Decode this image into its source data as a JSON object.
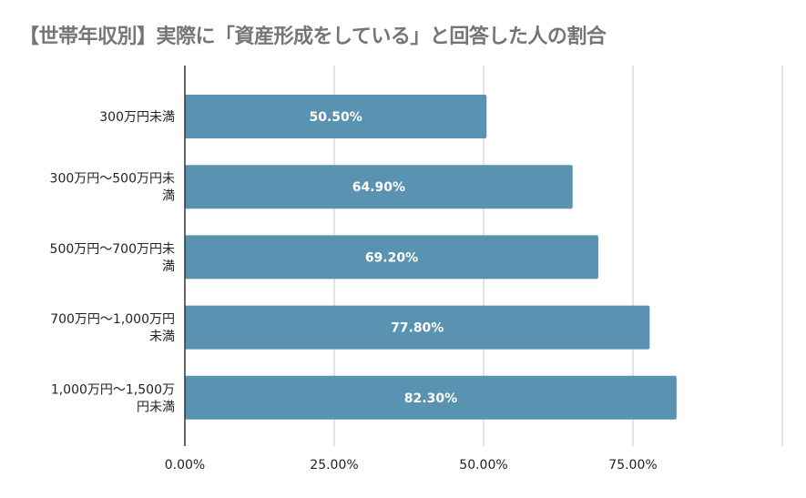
{
  "chart_data": {
    "type": "bar",
    "orientation": "horizontal",
    "title": "【世帯年収別】実際に「資産形成をしている」と回答した人の割合",
    "categories": [
      [
        "300万円未満"
      ],
      [
        "300万円～500万円未",
        "満"
      ],
      [
        "500万円～700万円未",
        "満"
      ],
      [
        "700万円～1,000万円",
        "未満"
      ],
      [
        "1,000万円～1,500万",
        "円未満"
      ]
    ],
    "values": [
      50.5,
      64.9,
      69.2,
      77.8,
      82.3
    ],
    "data_labels": [
      "50.50%",
      "64.90%",
      "69.20%",
      "77.80%",
      "82.30%"
    ],
    "x_ticks": [
      0,
      25,
      50,
      75,
      100
    ],
    "x_tick_labels": [
      "0.00%",
      "25.00%",
      "50.00%",
      "75.00%",
      ""
    ],
    "xlim": [
      0,
      100
    ],
    "grid": true,
    "bar_color": "#5a93b1",
    "grid_color": "#c8c8c8",
    "axis_color": "#333333",
    "title_color": "#757575"
  }
}
